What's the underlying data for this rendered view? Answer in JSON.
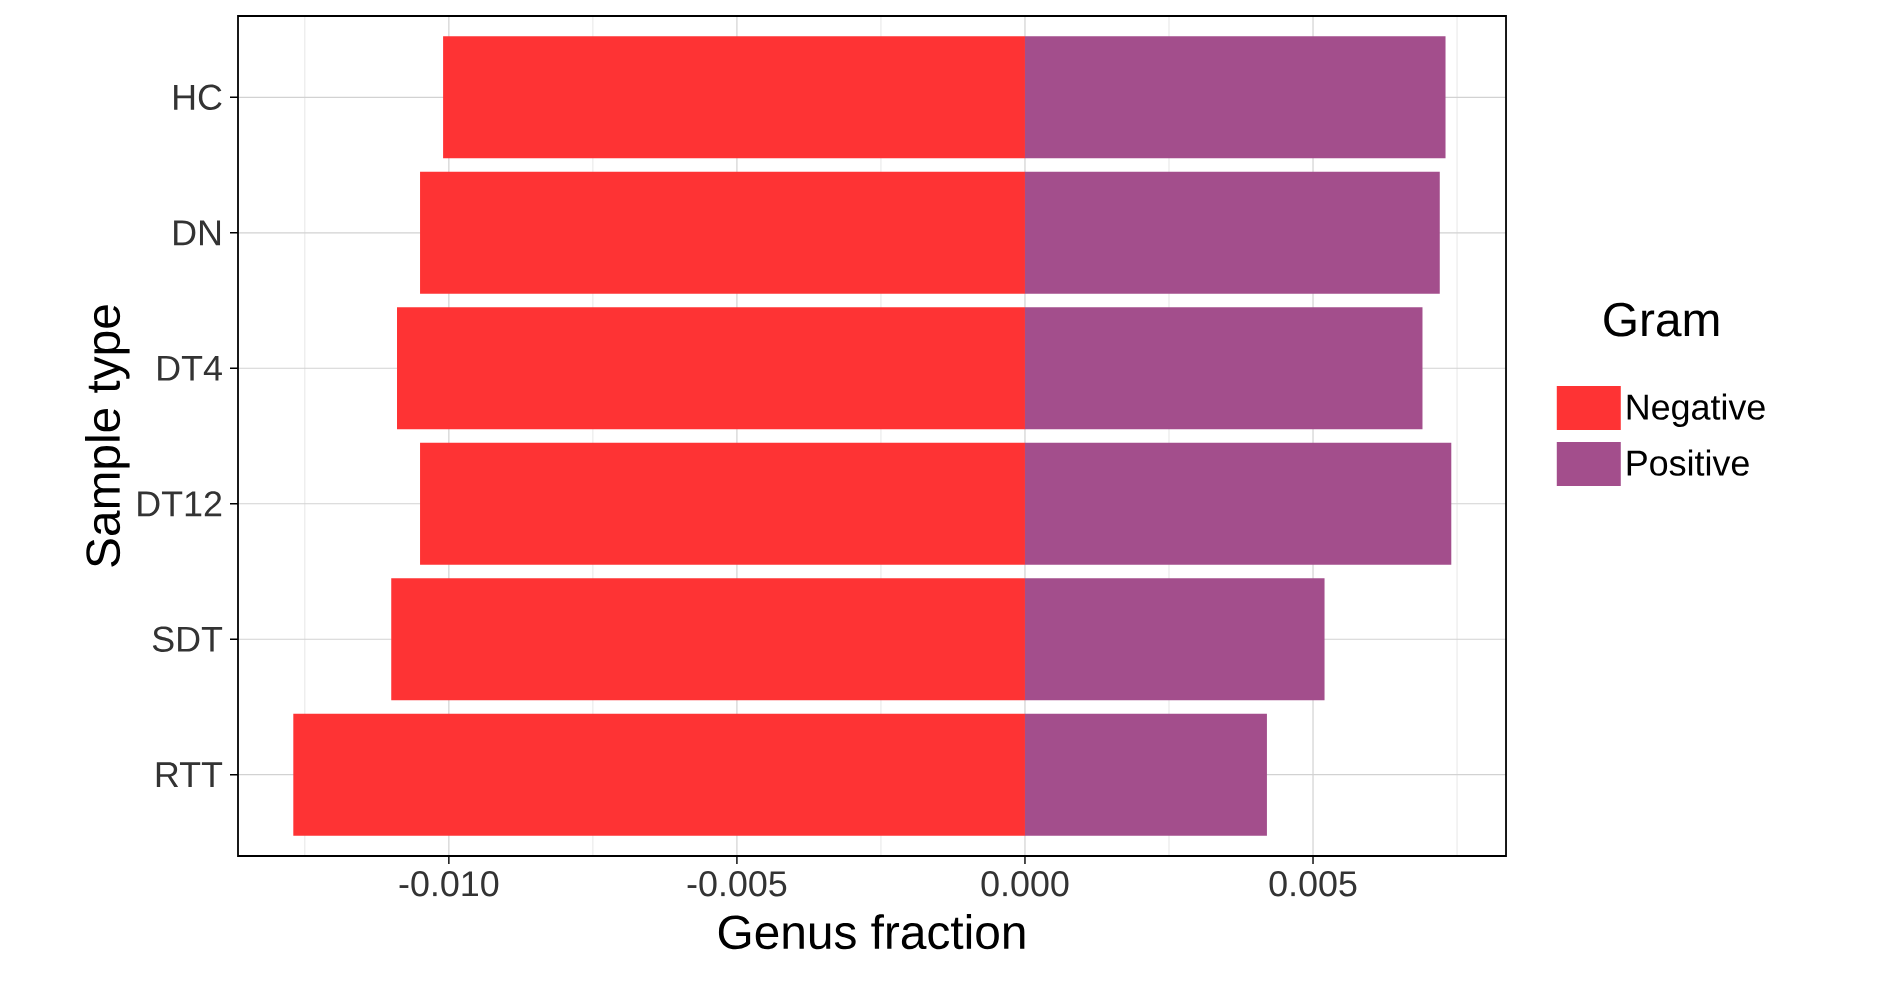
{
  "chart_data": {
    "type": "bar",
    "orientation": "horizontal",
    "stacked": true,
    "xlabel": "Genus fraction",
    "ylabel": "Sample type",
    "legend_title": "Gram",
    "categories": [
      "HC",
      "DN",
      "DT4",
      "DT12",
      "SDT",
      "RTT"
    ],
    "series": [
      {
        "name": "Negative",
        "color": "#fe3334",
        "values": [
          -0.0101,
          -0.0105,
          -0.0109,
          -0.0105,
          -0.011,
          -0.0127
        ]
      },
      {
        "name": "Positive",
        "color": "#a34e8c",
        "values": [
          0.0073,
          0.0072,
          0.0069,
          0.0074,
          0.0052,
          0.0042
        ]
      }
    ],
    "xlim": [
      -0.01366,
      0.00835
    ],
    "xticks": [
      {
        "value": -0.01,
        "label": "-0.010"
      },
      {
        "value": -0.005,
        "label": "-0.005"
      },
      {
        "value": 0,
        "label": "0.000"
      },
      {
        "value": 0.005,
        "label": "0.005"
      }
    ],
    "grid": true,
    "legend": "right"
  }
}
